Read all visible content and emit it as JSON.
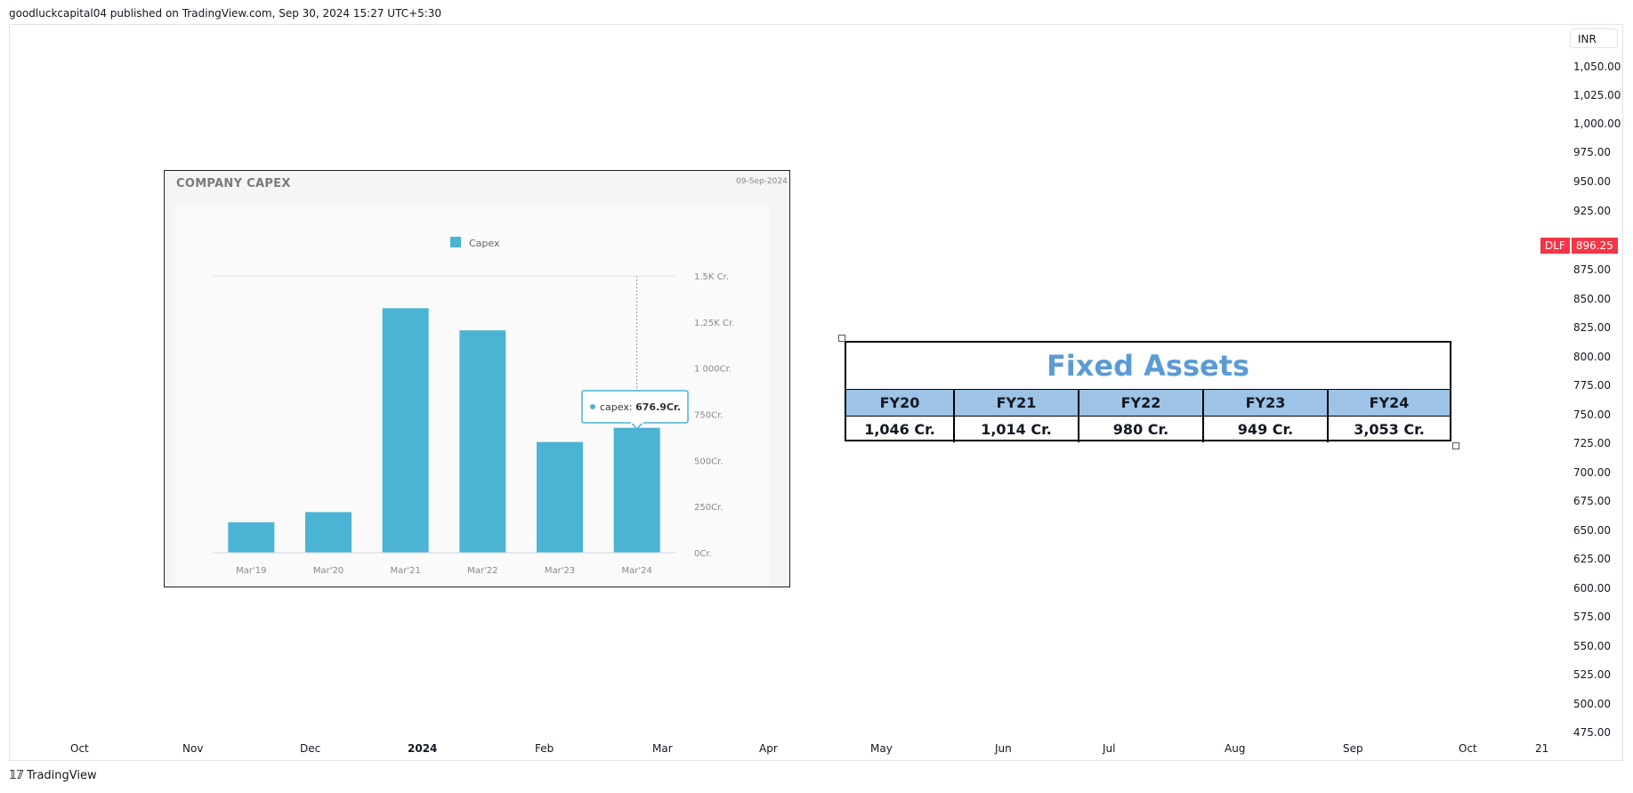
{
  "header": {
    "publisher_text": "goodluckcapital04 published on TradingView.com, Sep 30, 2024 15:27 UTC+5:30"
  },
  "price_axis": {
    "currency": "INR",
    "ticks": [
      "1,050.00",
      "1,025.00",
      "1,000.00",
      "975.00",
      "950.00",
      "925.00",
      "875.00",
      "850.00",
      "825.00",
      "800.00",
      "775.00",
      "750.00",
      "725.00",
      "700.00",
      "675.00",
      "650.00",
      "625.00",
      "600.00",
      "575.00",
      "550.00",
      "525.00",
      "500.00",
      "475.00"
    ],
    "last_price": {
      "symbol": "DLF",
      "value": "896.25",
      "color": "#f23645"
    }
  },
  "time_axis": {
    "ticks": [
      "Oct",
      "Nov",
      "Dec",
      "2024",
      "Feb",
      "Mar",
      "Apr",
      "May",
      "Jun",
      "Jul",
      "Aug",
      "Sep",
      "Oct",
      "21"
    ]
  },
  "footer": {
    "brand": "TradingView"
  },
  "chart_data": {
    "type": "bar",
    "title": "COMPANY CAPEX",
    "date": "09-Sep-2024",
    "legend": "Capex",
    "categories": [
      "Mar'19",
      "Mar'20",
      "Mar'21",
      "Mar'22",
      "Mar'23",
      "Mar'24"
    ],
    "values": [
      165,
      220,
      1325,
      1205,
      600,
      676.9
    ],
    "ylim": [
      0,
      1500
    ],
    "ytick_labels": [
      "0Cr.",
      "250Cr.",
      "500Cr.",
      "750Cr.",
      "1 000Cr.",
      "1.25K Cr.",
      "1.5K Cr."
    ],
    "ytick_values": [
      0,
      250,
      500,
      750,
      1000,
      1250,
      1500
    ],
    "bar_color": "#4bb3d4",
    "tooltip": {
      "label": "capex:",
      "value": "676.9Cr.",
      "category_index": 5
    }
  },
  "fixed_assets": {
    "title": "Fixed Assets",
    "headers": [
      "FY20",
      "FY21",
      "FY22",
      "FY23",
      "FY24"
    ],
    "values": [
      "1,046 Cr.",
      "1,014 Cr.",
      "980 Cr.",
      "949 Cr.",
      "3,053 Cr."
    ]
  }
}
